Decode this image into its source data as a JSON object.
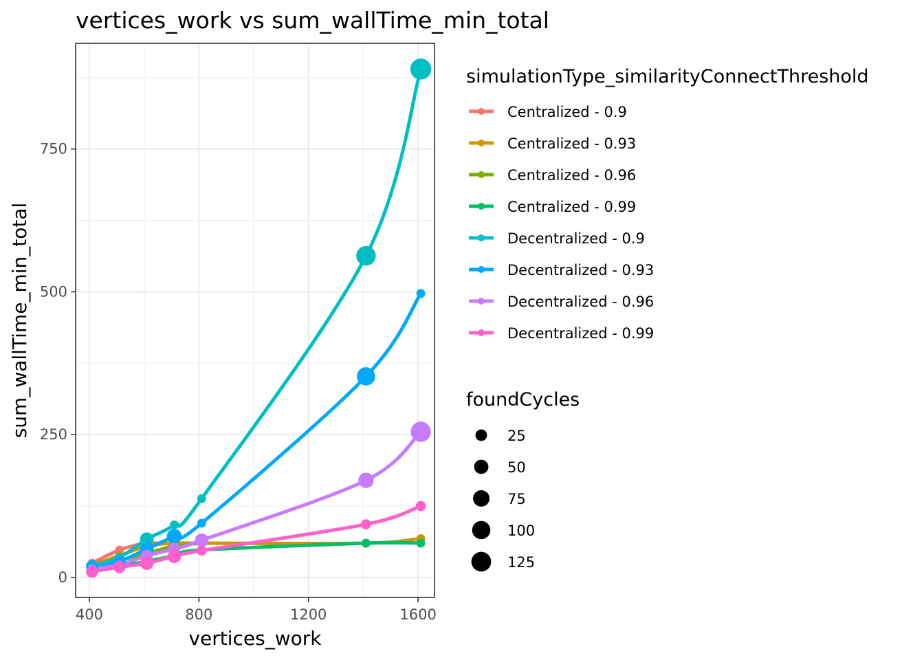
{
  "chart_data": {
    "type": "line",
    "title": "vertices_work  vs  sum_wallTime_min_total",
    "xlabel": "vertices_work",
    "ylabel": "sum_wallTime_min_total",
    "xlim": [
      350,
      1660
    ],
    "ylim": [
      -35,
      935
    ],
    "x_ticks": [
      400,
      800,
      1200,
      1600
    ],
    "y_ticks": [
      0,
      250,
      500,
      750
    ],
    "x_tick_labels": [
      "400",
      "800",
      "1200",
      "1600"
    ],
    "y_tick_labels": [
      "0",
      "250",
      "500",
      "750"
    ],
    "grid": true,
    "legend_position": "right",
    "color_legend": {
      "title": "simulationType_similarityConnectThreshold",
      "entries": [
        "Centralized - 0.9",
        "Centralized - 0.93",
        "Centralized - 0.96",
        "Centralized - 0.99",
        "Decentralized - 0.9",
        "Decentralized - 0.93",
        "Decentralized - 0.96",
        "Decentralized - 0.99"
      ]
    },
    "size_legend": {
      "title": "foundCycles",
      "entries": [
        {
          "label": "25",
          "value": 25
        },
        {
          "label": "50",
          "value": 50
        },
        {
          "label": "75",
          "value": 75
        },
        {
          "label": "100",
          "value": 100
        },
        {
          "label": "125",
          "value": 125
        }
      ]
    },
    "series": [
      {
        "name": "Centralized - 0.9",
        "color": "#F8766D",
        "x": [
          410,
          510,
          610,
          710
        ],
        "y": [
          25,
          48,
          60,
          58
        ],
        "size": [
          5,
          5,
          5,
          5
        ]
      },
      {
        "name": "Centralized - 0.93",
        "color": "#CD9600",
        "x": [
          410,
          510,
          610,
          710,
          810,
          1410,
          1610
        ],
        "y": [
          22,
          38,
          55,
          60,
          60,
          60,
          68
        ],
        "size": [
          5,
          5,
          5,
          5,
          5,
          5,
          5
        ]
      },
      {
        "name": "Centralized - 0.96",
        "color": "#7CAE00",
        "x": [
          410,
          510,
          610,
          710,
          810
        ],
        "y": [
          18,
          30,
          42,
          55,
          60
        ],
        "size": [
          5,
          5,
          5,
          5,
          5
        ]
      },
      {
        "name": "Centralized - 0.99",
        "color": "#00BE67",
        "x": [
          410,
          510,
          610,
          710,
          810,
          1410,
          1610
        ],
        "y": [
          12,
          20,
          28,
          38,
          48,
          60,
          60
        ],
        "size": [
          5,
          5,
          5,
          5,
          5,
          5,
          5
        ]
      },
      {
        "name": "Decentralized - 0.9",
        "color": "#00BFC4",
        "x": [
          410,
          510,
          610,
          710,
          810,
          1410,
          1610
        ],
        "y": [
          20,
          35,
          67,
          92,
          138,
          563,
          890
        ],
        "size": [
          20,
          5,
          30,
          5,
          5,
          90,
          110
        ]
      },
      {
        "name": "Decentralized - 0.93",
        "color": "#00A9FF",
        "x": [
          410,
          510,
          610,
          710,
          810,
          1410,
          1610
        ],
        "y": [
          18,
          28,
          50,
          72,
          95,
          352,
          497
        ],
        "size": [
          20,
          20,
          30,
          40,
          5,
          75,
          5
        ]
      },
      {
        "name": "Decentralized - 0.96",
        "color": "#C77CFF",
        "x": [
          410,
          510,
          610,
          710,
          810,
          1410,
          1610
        ],
        "y": [
          15,
          22,
          38,
          50,
          65,
          170,
          255
        ],
        "size": [
          5,
          5,
          20,
          20,
          30,
          45,
          100
        ]
      },
      {
        "name": "Decentralized - 0.99",
        "color": "#FF61CC",
        "x": [
          410,
          510,
          610,
          710,
          810,
          1410,
          1610
        ],
        "y": [
          10,
          18,
          25,
          37,
          47,
          93,
          125
        ],
        "size": [
          20,
          20,
          30,
          30,
          10,
          10,
          10
        ]
      }
    ]
  }
}
